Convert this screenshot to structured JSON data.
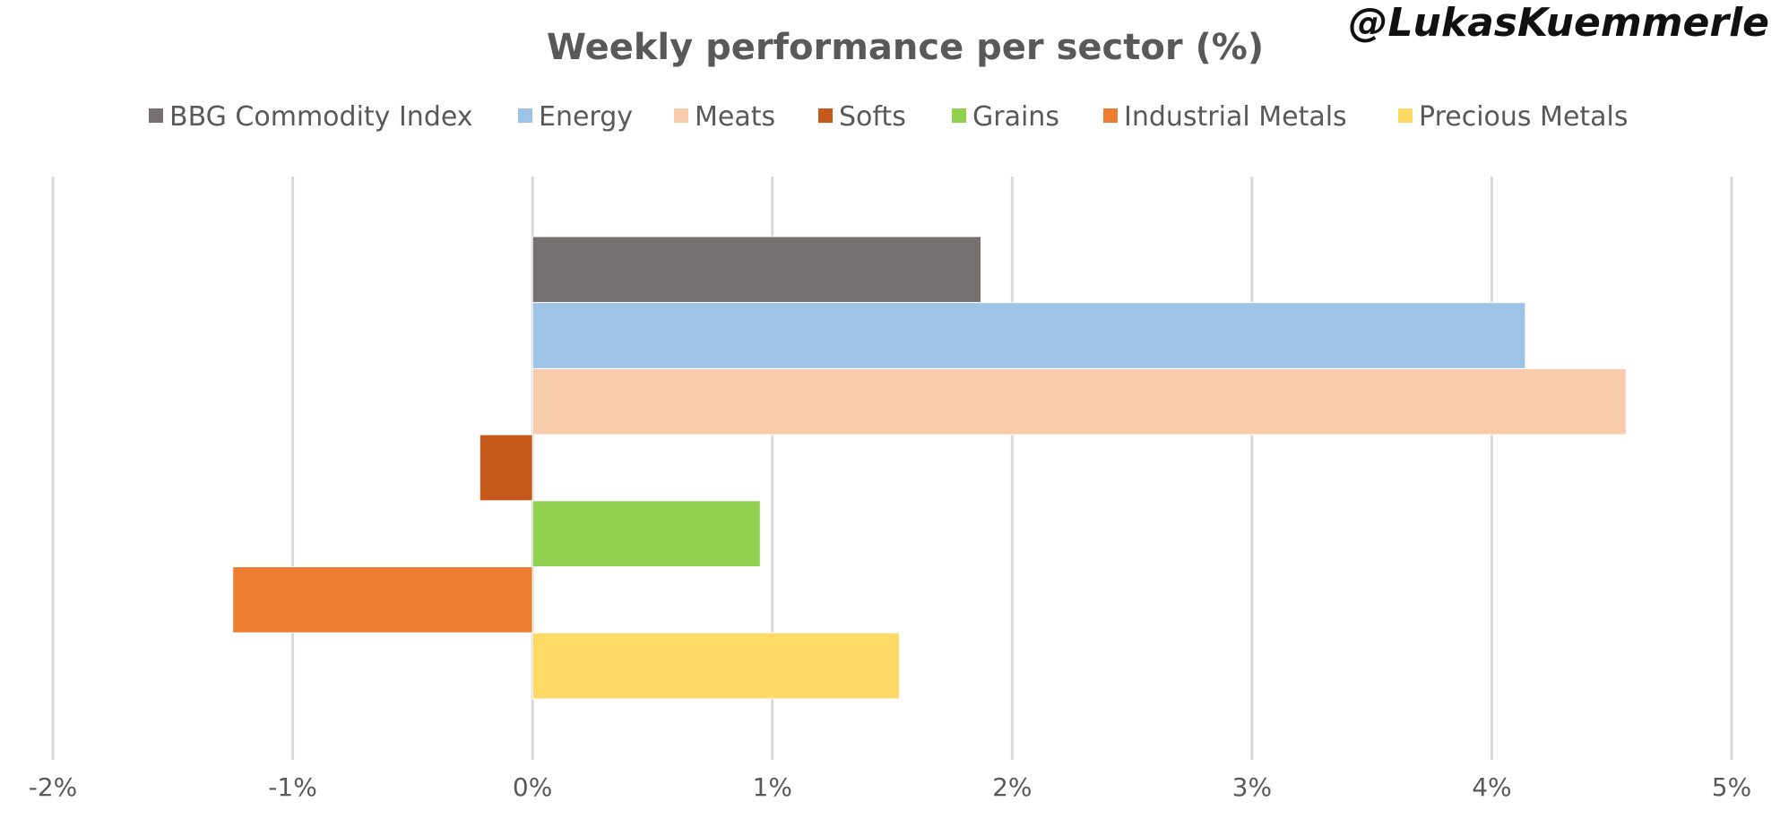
{
  "watermark": "@LukasKuemmerle",
  "chart_data": {
    "type": "bar",
    "orientation": "horizontal",
    "title": "Weekly performance per sector (%)",
    "xlabel": "",
    "ylabel": "",
    "xlim": [
      -2,
      5
    ],
    "ticks": [
      -2,
      -1,
      0,
      1,
      2,
      3,
      4,
      5
    ],
    "tick_labels": [
      "-2%",
      "-1%",
      "0%",
      "1%",
      "2%",
      "3%",
      "4%",
      "5%"
    ],
    "grid": true,
    "legend_position": "top",
    "series": [
      {
        "name": "BBG Commodity Index",
        "value": 1.87,
        "color": "#767171"
      },
      {
        "name": "Energy",
        "value": 4.14,
        "color": "#9dc3e6"
      },
      {
        "name": "Meats",
        "value": 4.56,
        "color": "#f8cbad"
      },
      {
        "name": "Softs",
        "value": -0.22,
        "color": "#c55a1b"
      },
      {
        "name": "Grains",
        "value": 0.95,
        "color": "#92d050"
      },
      {
        "name": "Industrial Metals",
        "value": -1.25,
        "color": "#ed7d31"
      },
      {
        "name": "Precious Metals",
        "value": 1.53,
        "color": "#ffd966"
      }
    ]
  }
}
